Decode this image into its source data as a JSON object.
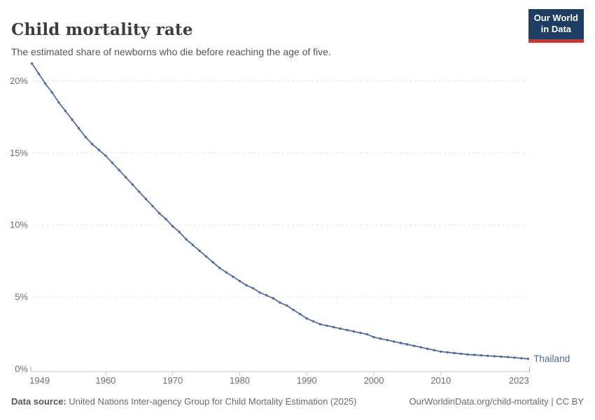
{
  "header": {
    "title": "Child mortality rate",
    "subtitle": "The estimated share of newborns who die before reaching the age of five."
  },
  "logo": {
    "line1": "Our World",
    "line2": "in Data",
    "bg_color": "#1d3d63",
    "accent_color": "#c9342e"
  },
  "footer": {
    "source_label": "Data source:",
    "source_text": " United Nations Inter-agency Group for Child Mortality Estimation (2025)",
    "credit": "OurWorldinData.org/child-mortality | CC BY"
  },
  "chart_data": {
    "type": "line",
    "title": "Child mortality rate",
    "subtitle": "The estimated share of newborns who die before reaching the age of five.",
    "xlabel": "",
    "ylabel": "",
    "xlim": [
      1949,
      2023
    ],
    "ylim": [
      0,
      21.5
    ],
    "x_ticks": [
      1949,
      1960,
      1970,
      1980,
      1990,
      2000,
      2010,
      2023
    ],
    "y_ticks": [
      0,
      5,
      10,
      15,
      20
    ],
    "y_tick_suffix": "%",
    "grid": "dashed-horizontal",
    "legend": "end-of-line-label",
    "colors": {
      "line": "#4c6a9c",
      "grid": "#e0e0e0",
      "axis": "#c8c8c8",
      "axis_cap": "#a3a3a3",
      "tick_label": "#6e6e6e"
    },
    "series": [
      {
        "name": "Thailand",
        "color": "#4c6a9c",
        "x": [
          1949,
          1950,
          1951,
          1952,
          1953,
          1954,
          1955,
          1956,
          1957,
          1958,
          1959,
          1960,
          1961,
          1962,
          1963,
          1964,
          1965,
          1966,
          1967,
          1968,
          1969,
          1970,
          1971,
          1972,
          1973,
          1974,
          1975,
          1976,
          1977,
          1978,
          1979,
          1980,
          1981,
          1982,
          1983,
          1984,
          1985,
          1986,
          1987,
          1988,
          1989,
          1990,
          1991,
          1992,
          1993,
          1994,
          1995,
          1996,
          1997,
          1998,
          1999,
          2000,
          2001,
          2002,
          2003,
          2004,
          2005,
          2006,
          2007,
          2008,
          2009,
          2010,
          2011,
          2012,
          2013,
          2014,
          2015,
          2016,
          2017,
          2018,
          2019,
          2020,
          2021,
          2022,
          2023
        ],
        "values": [
          21.2,
          20.5,
          19.8,
          19.2,
          18.5,
          17.9,
          17.3,
          16.7,
          16.1,
          15.6,
          15.2,
          14.8,
          14.3,
          13.8,
          13.3,
          12.8,
          12.3,
          11.8,
          11.3,
          10.8,
          10.4,
          9.9,
          9.5,
          9.0,
          8.6,
          8.2,
          7.8,
          7.4,
          7.0,
          6.7,
          6.4,
          6.1,
          5.8,
          5.6,
          5.3,
          5.1,
          4.9,
          4.6,
          4.4,
          4.1,
          3.8,
          3.5,
          3.3,
          3.1,
          3.0,
          2.9,
          2.8,
          2.7,
          2.6,
          2.5,
          2.4,
          2.2,
          2.1,
          2.0,
          1.9,
          1.8,
          1.7,
          1.6,
          1.5,
          1.4,
          1.3,
          1.2,
          1.15,
          1.1,
          1.05,
          1.0,
          0.97,
          0.94,
          0.91,
          0.88,
          0.85,
          0.82,
          0.78,
          0.74,
          0.7
        ]
      }
    ]
  }
}
